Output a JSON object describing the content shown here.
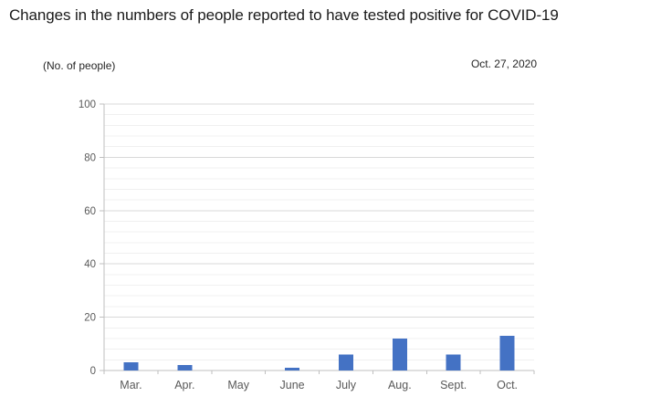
{
  "page": {
    "title": "Changes in the numbers of people reported to have tested positive for COVID-19"
  },
  "chart_data": {
    "type": "bar",
    "title": "Changes in the numbers of people reported to have tested positive for COVID-19",
    "date_label": "Oct. 27, 2020",
    "ylabel": "(No. of people)",
    "xlabel": "",
    "categories": [
      "Mar.",
      "Apr.",
      "May",
      "June",
      "July",
      "Aug.",
      "Sept.",
      "Oct."
    ],
    "values": [
      3,
      2,
      0,
      1,
      6,
      12,
      6,
      13
    ],
    "ylim": [
      0,
      100
    ],
    "y_ticks": [
      0,
      20,
      40,
      60,
      80,
      100
    ],
    "y_major_unit": 20,
    "y_minor_unit": 4,
    "grid": true,
    "legend": false,
    "style": {
      "bar_color": "#4472C4",
      "grid_major_color": "#D9D9D9",
      "grid_minor_color": "#F0F0F0",
      "axis_color": "#BFBFBF",
      "tick_label_color": "#595959",
      "title_color": "#1a1a1a"
    }
  }
}
